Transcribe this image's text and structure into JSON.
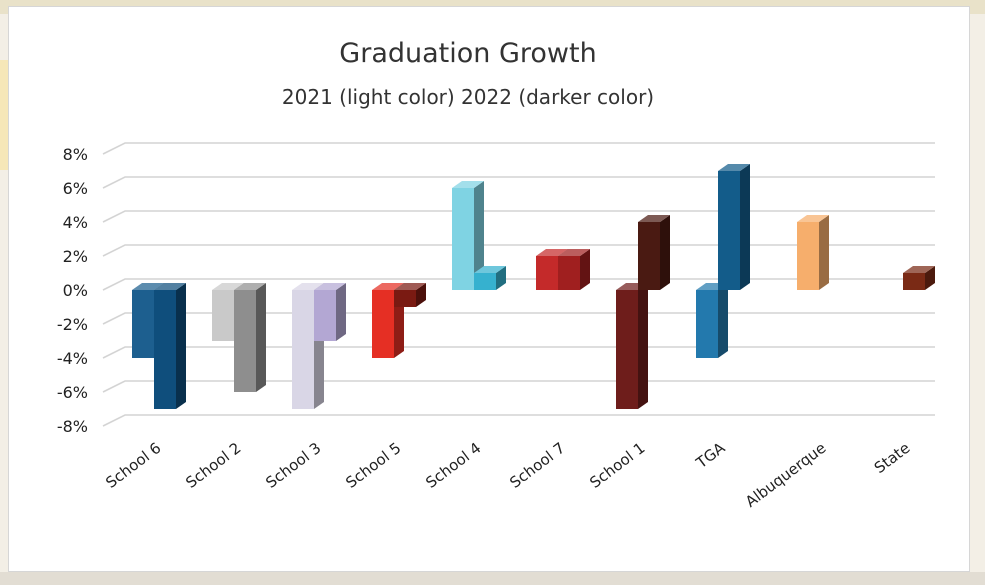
{
  "chart_data": {
    "type": "bar",
    "title": "Graduation Growth",
    "subtitle": "2021 (light color) 2022 (darker color)",
    "categories": [
      "School 6",
      "School 2",
      "School 3",
      "School 5",
      "School 4",
      "School 7",
      "School 1",
      "TGA",
      "Albuquerque",
      "State"
    ],
    "series": [
      {
        "values": [
          -4,
          -3,
          -7,
          -4,
          6,
          2,
          -7,
          -4,
          4,
          null
        ]
      },
      {
        "values": [
          -7,
          -6,
          -3,
          -1,
          1,
          2,
          4,
          7,
          null,
          1
        ]
      }
    ],
    "colors": {
      "light": [
        "#1d5f8f",
        "#c9c9c9",
        "#d9d6e6",
        "#e52f24",
        "#7fd3e3",
        "#c42a2a",
        "#6e1d1b",
        "#2379ad",
        "#f6ae6c",
        "#7a2a15"
      ],
      "dark": [
        "#0f4e7c",
        "#8e8e8e",
        "#b3a7d3",
        "#7a1a12",
        "#36b1cf",
        "#a01f1f",
        "#4a1a12",
        "#135c8a",
        "#f6ae6c",
        "#7a2a15"
      ]
    },
    "yticks": [
      "8%",
      "6%",
      "4%",
      "2%",
      "0%",
      "-2%",
      "-4%",
      "-6%",
      "-8%"
    ],
    "ylim": [
      -8,
      8
    ],
    "grid": true
  }
}
